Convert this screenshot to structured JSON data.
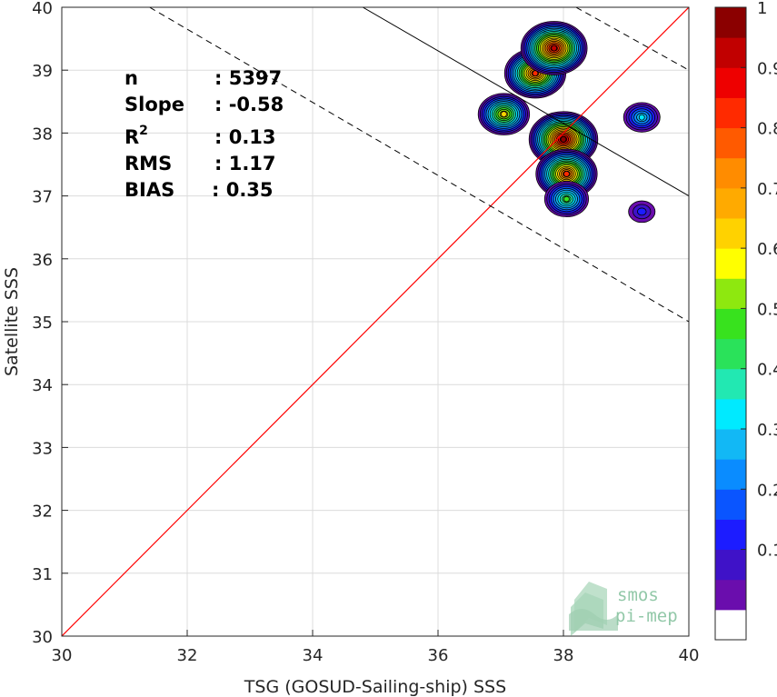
{
  "chart_data": {
    "type": "scatter",
    "xlabel": "TSG (GOSUD-Sailing-ship) SSS",
    "ylabel": "Satellite SSS",
    "xlim": [
      30,
      40
    ],
    "ylim": [
      30,
      40
    ],
    "xticks": [
      "30",
      "32",
      "34",
      "36",
      "38",
      "40"
    ],
    "yticks": [
      "30",
      "31",
      "32",
      "33",
      "34",
      "35",
      "36",
      "37",
      "38",
      "39",
      "40"
    ],
    "grid": true,
    "stats": [
      {
        "label": "n",
        "value": ": 5397"
      },
      {
        "label": "Slope",
        "value": ": -0.58"
      },
      {
        "label": "R",
        "sup": "2",
        "value": ": 0.13"
      },
      {
        "label": "RMS",
        "value": ": 1.17"
      },
      {
        "label": "BIAS",
        "value": ": 0.35"
      }
    ],
    "identity_line": {
      "color": "#ff0000"
    },
    "regression_line": {
      "slope": -0.58,
      "points": [
        [
          34.8,
          40.0
        ],
        [
          40.0,
          37.0
        ]
      ],
      "color": "#000000"
    },
    "envelope_lines": [
      {
        "style": "dashed",
        "points": [
          [
            31.4,
            40.0
          ],
          [
            40.0,
            35.0
          ]
        ]
      },
      {
        "style": "dashed",
        "points": [
          [
            38.2,
            40.0
          ],
          [
            40.0,
            39.0
          ]
        ]
      }
    ],
    "density_clusters": [
      {
        "x": 37.05,
        "y": 38.3,
        "peak": 0.65
      },
      {
        "x": 37.55,
        "y": 38.95,
        "peak": 0.85
      },
      {
        "x": 37.85,
        "y": 39.35,
        "peak": 0.95
      },
      {
        "x": 38.0,
        "y": 37.9,
        "peak": 1.0
      },
      {
        "x": 38.05,
        "y": 37.35,
        "peak": 0.85
      },
      {
        "x": 38.05,
        "y": 36.95,
        "peak": 0.5
      },
      {
        "x": 39.25,
        "y": 38.25,
        "peak": 0.35
      },
      {
        "x": 39.25,
        "y": 36.75,
        "peak": 0.15
      }
    ],
    "colorbar": {
      "ticks": [
        "0.1",
        "0.2",
        "0.3",
        "0.4",
        "0.5",
        "0.6",
        "0.7",
        "0.8",
        "0.9",
        "1"
      ],
      "colors": [
        "#ffffff",
        "#6a0dad",
        "#3f12c8",
        "#1c1cff",
        "#0a55ff",
        "#0a8cff",
        "#12b8f5",
        "#00eaff",
        "#22e8b2",
        "#2ae25a",
        "#38e21e",
        "#8ee80f",
        "#ffff00",
        "#ffd200",
        "#ffaa00",
        "#ff8c00",
        "#ff5a00",
        "#ff2a00",
        "#ee0000",
        "#c10000",
        "#8b0000"
      ]
    },
    "logo": {
      "line1": "smos",
      "line2": "pi-mep"
    }
  }
}
